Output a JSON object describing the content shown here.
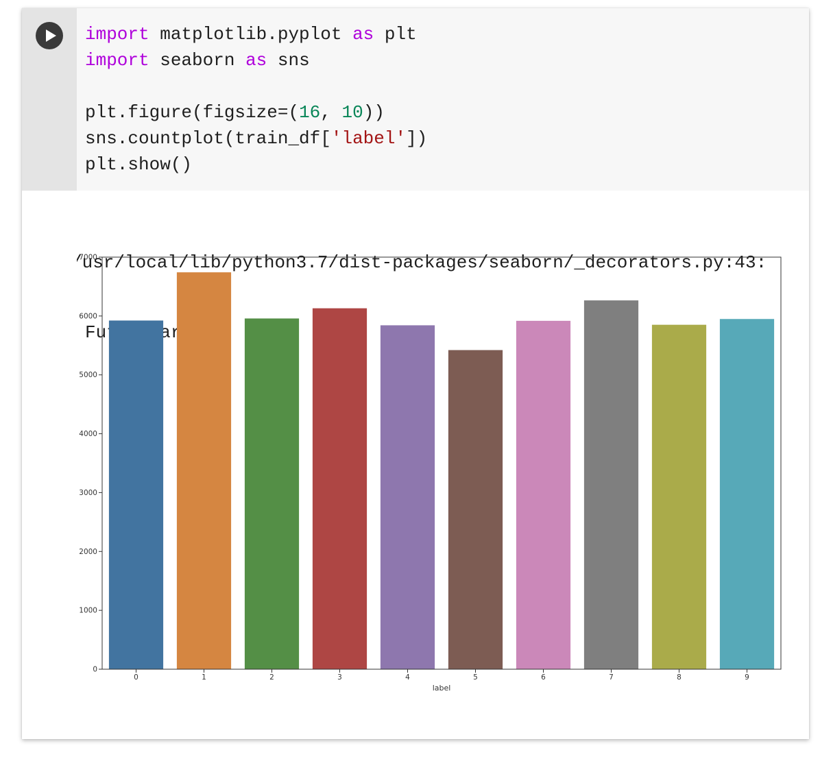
{
  "cell": {
    "run_icon": "play-icon",
    "code_lines": [
      [
        {
          "t": "import",
          "c": "kw"
        },
        {
          "t": " matplotlib.pyplot "
        },
        {
          "t": "as",
          "c": "kw"
        },
        {
          "t": " plt"
        }
      ],
      [
        {
          "t": "import",
          "c": "kw"
        },
        {
          "t": " seaborn "
        },
        {
          "t": "as",
          "c": "kw"
        },
        {
          "t": " sns"
        }
      ],
      [],
      [
        {
          "t": "plt.figure(figsize=("
        },
        {
          "t": "16",
          "c": "num"
        },
        {
          "t": ", "
        },
        {
          "t": "10",
          "c": "num"
        },
        {
          "t": "))"
        }
      ],
      [
        {
          "t": "sns.countplot(train_df["
        },
        {
          "t": "'label'",
          "c": "str"
        },
        {
          "t": "])"
        }
      ],
      [
        {
          "t": "plt.show()"
        }
      ]
    ]
  },
  "output": {
    "warning_path": "/usr/local/lib/python3.7/dist-packages/seaborn/_decorators.py:43:",
    "warning_type": "FutureWarning"
  },
  "chart_data": {
    "type": "bar",
    "xlabel": "label",
    "ylabel": "",
    "categories": [
      "0",
      "1",
      "2",
      "3",
      "4",
      "5",
      "6",
      "7",
      "8",
      "9"
    ],
    "values": [
      5923,
      6742,
      5958,
      6131,
      5842,
      5421,
      5918,
      6265,
      5851,
      5949
    ],
    "colors": [
      "#4274a0",
      "#d58641",
      "#548f46",
      "#ae4644",
      "#8e77ae",
      "#7d5c53",
      "#cb88b9",
      "#7f7f7f",
      "#aaab4a",
      "#57a9b8"
    ],
    "ylim": [
      0,
      7000
    ],
    "yticks": [
      0,
      1000,
      2000,
      3000,
      4000,
      5000,
      6000,
      7000
    ],
    "grid": false
  }
}
